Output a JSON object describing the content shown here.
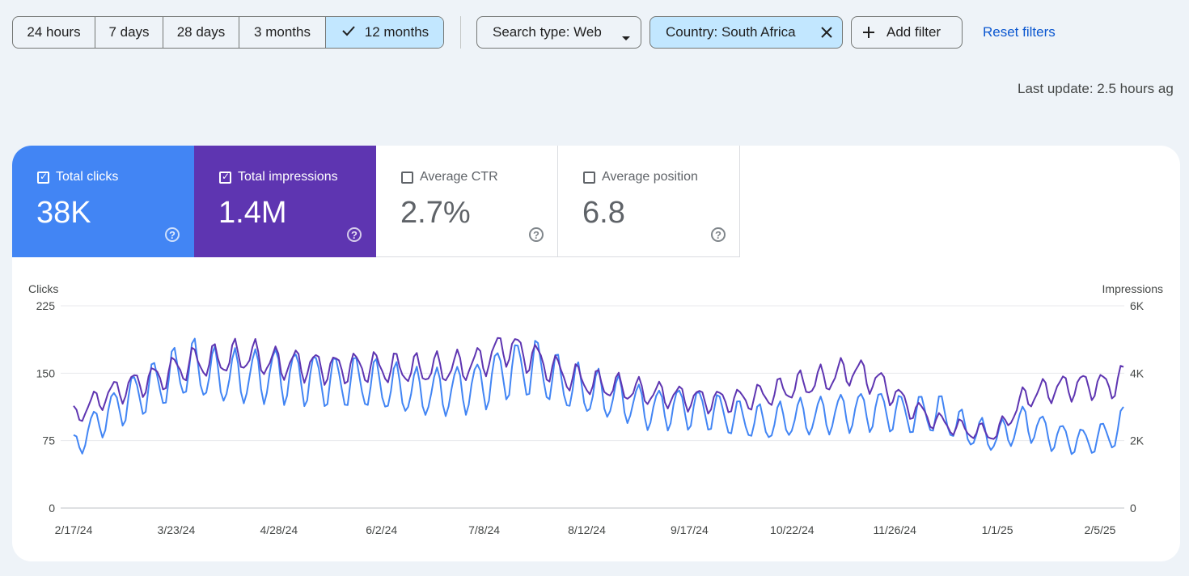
{
  "toolbar": {
    "ranges": [
      {
        "label": "24 hours",
        "selected": false
      },
      {
        "label": "7 days",
        "selected": false
      },
      {
        "label": "28 days",
        "selected": false
      },
      {
        "label": "3 months",
        "selected": false
      },
      {
        "label": "12 months",
        "selected": true
      }
    ],
    "search_type": "Search type: Web",
    "country_filter": "Country: South Africa",
    "add_filter": "Add filter",
    "reset_filters": "Reset filters"
  },
  "last_update": "Last update: 2.5 hours ag",
  "metrics": [
    {
      "label": "Total clicks",
      "value": "38K",
      "checked": true,
      "color": "#4285f4"
    },
    {
      "label": "Total impressions",
      "value": "1.4M",
      "checked": true,
      "color": "#5e35b1"
    },
    {
      "label": "Average CTR",
      "value": "2.7%",
      "checked": false
    },
    {
      "label": "Average position",
      "value": "6.8",
      "checked": false
    }
  ],
  "chart_data": {
    "type": "line",
    "y_left_label": "Clicks",
    "y_right_label": "Impressions",
    "y_left_ticks": [
      "225",
      "150",
      "75",
      "0"
    ],
    "y_right_ticks": [
      "6K",
      "4K",
      "2K",
      "0"
    ],
    "y_left_lim": [
      0,
      225
    ],
    "y_right_lim": [
      0,
      6000
    ],
    "x_tick_labels": [
      "2/17/24",
      "3/23/24",
      "4/28/24",
      "6/2/24",
      "7/8/24",
      "8/12/24",
      "9/17/24",
      "10/22/24",
      "11/26/24",
      "1/1/25",
      "2/5/25"
    ],
    "x_start": "2/17/24",
    "x_end": "2/23/25",
    "grid": true,
    "series": [
      {
        "name": "Clicks",
        "color": "#4285f4",
        "axis": "left",
        "anchors": [
          [
            0,
            68
          ],
          [
            10,
            101
          ],
          [
            20,
            123
          ],
          [
            30,
            140
          ],
          [
            40,
            157
          ],
          [
            50,
            146
          ],
          [
            60,
            146
          ],
          [
            70,
            149
          ],
          [
            80,
            145
          ],
          [
            90,
            141
          ],
          [
            100,
            140
          ],
          [
            110,
            134
          ],
          [
            120,
            128
          ],
          [
            130,
            130
          ],
          [
            140,
            136
          ],
          [
            150,
            153
          ],
          [
            160,
            157
          ],
          [
            170,
            138
          ],
          [
            180,
            128
          ],
          [
            190,
            121
          ],
          [
            200,
            110
          ],
          [
            210,
            112
          ],
          [
            220,
            109
          ],
          [
            230,
            100
          ],
          [
            240,
            94
          ],
          [
            250,
            100
          ],
          [
            260,
            103
          ],
          [
            270,
            108
          ],
          [
            280,
            109
          ],
          [
            290,
            104
          ],
          [
            300,
            105
          ],
          [
            310,
            86
          ],
          [
            320,
            78
          ],
          [
            330,
            96
          ],
          [
            340,
            80
          ],
          [
            350,
            74
          ],
          [
            360,
            82
          ],
          [
            364,
            94
          ]
        ]
      },
      {
        "name": "Impressions",
        "color": "#5e35b1",
        "axis": "right",
        "anchors": [
          [
            0,
            2700
          ],
          [
            10,
            3300
          ],
          [
            20,
            3650
          ],
          [
            30,
            3900
          ],
          [
            40,
            4280
          ],
          [
            50,
            4380
          ],
          [
            60,
            4520
          ],
          [
            70,
            4300
          ],
          [
            80,
            4250
          ],
          [
            90,
            4150
          ],
          [
            100,
            4200
          ],
          [
            110,
            4150
          ],
          [
            120,
            4100
          ],
          [
            130,
            4150
          ],
          [
            140,
            4300
          ],
          [
            150,
            4800
          ],
          [
            160,
            4450
          ],
          [
            170,
            3950
          ],
          [
            180,
            3700
          ],
          [
            190,
            3550
          ],
          [
            200,
            3400
          ],
          [
            210,
            3300
          ],
          [
            220,
            3200
          ],
          [
            230,
            3200
          ],
          [
            240,
            3350
          ],
          [
            250,
            3600
          ],
          [
            260,
            3800
          ],
          [
            270,
            4100
          ],
          [
            280,
            3700
          ],
          [
            290,
            3000
          ],
          [
            300,
            2550
          ],
          [
            310,
            2300
          ],
          [
            320,
            2200
          ],
          [
            330,
            3300
          ],
          [
            340,
            3550
          ],
          [
            350,
            3650
          ],
          [
            360,
            3650
          ],
          [
            364,
            3900
          ]
        ]
      }
    ]
  }
}
